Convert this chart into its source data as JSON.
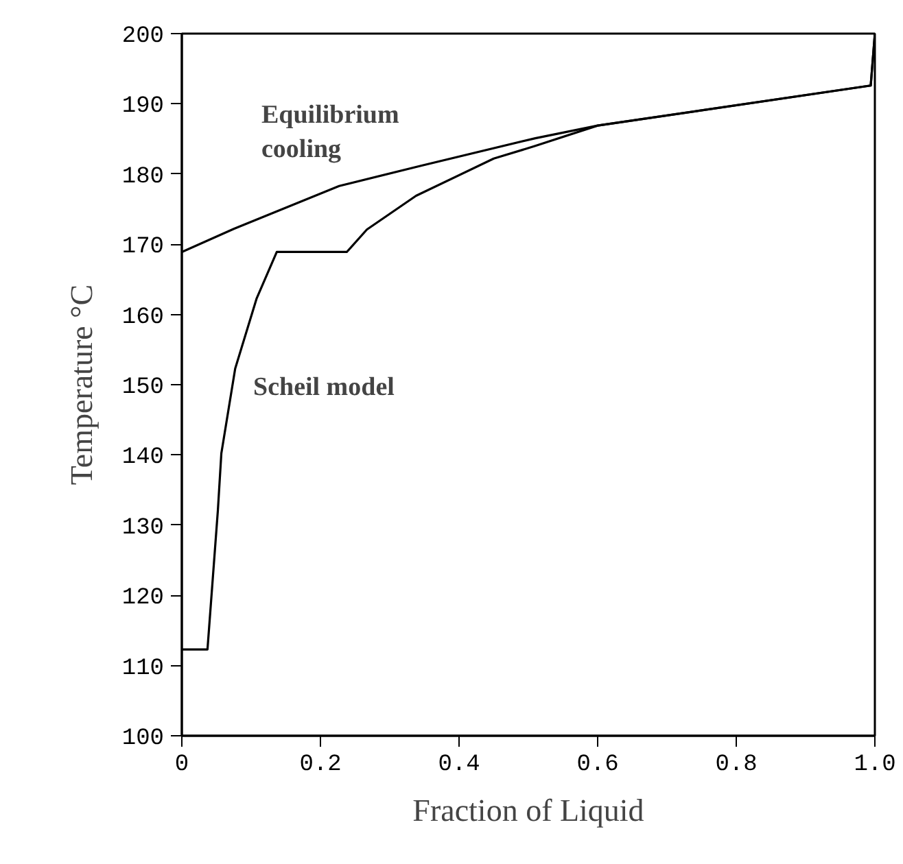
{
  "chart_data": {
    "type": "line",
    "xlabel": "Fraction of Liquid",
    "ylabel": "Temperature °C",
    "xlim": [
      0,
      1.0
    ],
    "ylim": [
      100,
      200
    ],
    "xticks": [
      0,
      {
        "value": 0.2,
        "label": "0.2"
      },
      {
        "value": 0.4,
        "label": "0.4"
      },
      {
        "value": 0.6,
        "label": "0.6"
      },
      {
        "value": 0.8,
        "label": "0.8"
      },
      {
        "value": 1.0,
        "label": "1.0"
      }
    ],
    "yticks": [
      100,
      110,
      120,
      130,
      140,
      150,
      160,
      170,
      180,
      190,
      200
    ],
    "grid": false,
    "marker": "none",
    "line_style": "solid",
    "series": [
      {
        "color": "#000000",
        "x": [
          0,
          0.075,
          0.227,
          0.346,
          0.51,
          0.6,
          0.994,
          1.0
        ],
        "values": [
          168.9,
          172.2,
          178.3,
          181.2,
          185.1,
          186.9,
          192.6,
          200
        ]
      },
      {
        "color": "#000000",
        "x": [
          0,
          0.037,
          0.052,
          0.057,
          0.077,
          0.108,
          0.137,
          0.238,
          0.267,
          0.338,
          0.45,
          0.51,
          0.6,
          0.994,
          1.0
        ],
        "values": [
          112.3,
          112.3,
          132.1,
          140.2,
          152.3,
          162.3,
          168.9,
          168.9,
          172.1,
          176.9,
          182.2,
          184.0,
          186.9,
          192.6,
          200
        ]
      }
    ],
    "annotations": [
      "Equilibrium\ncooling",
      "Scheil model"
    ]
  }
}
